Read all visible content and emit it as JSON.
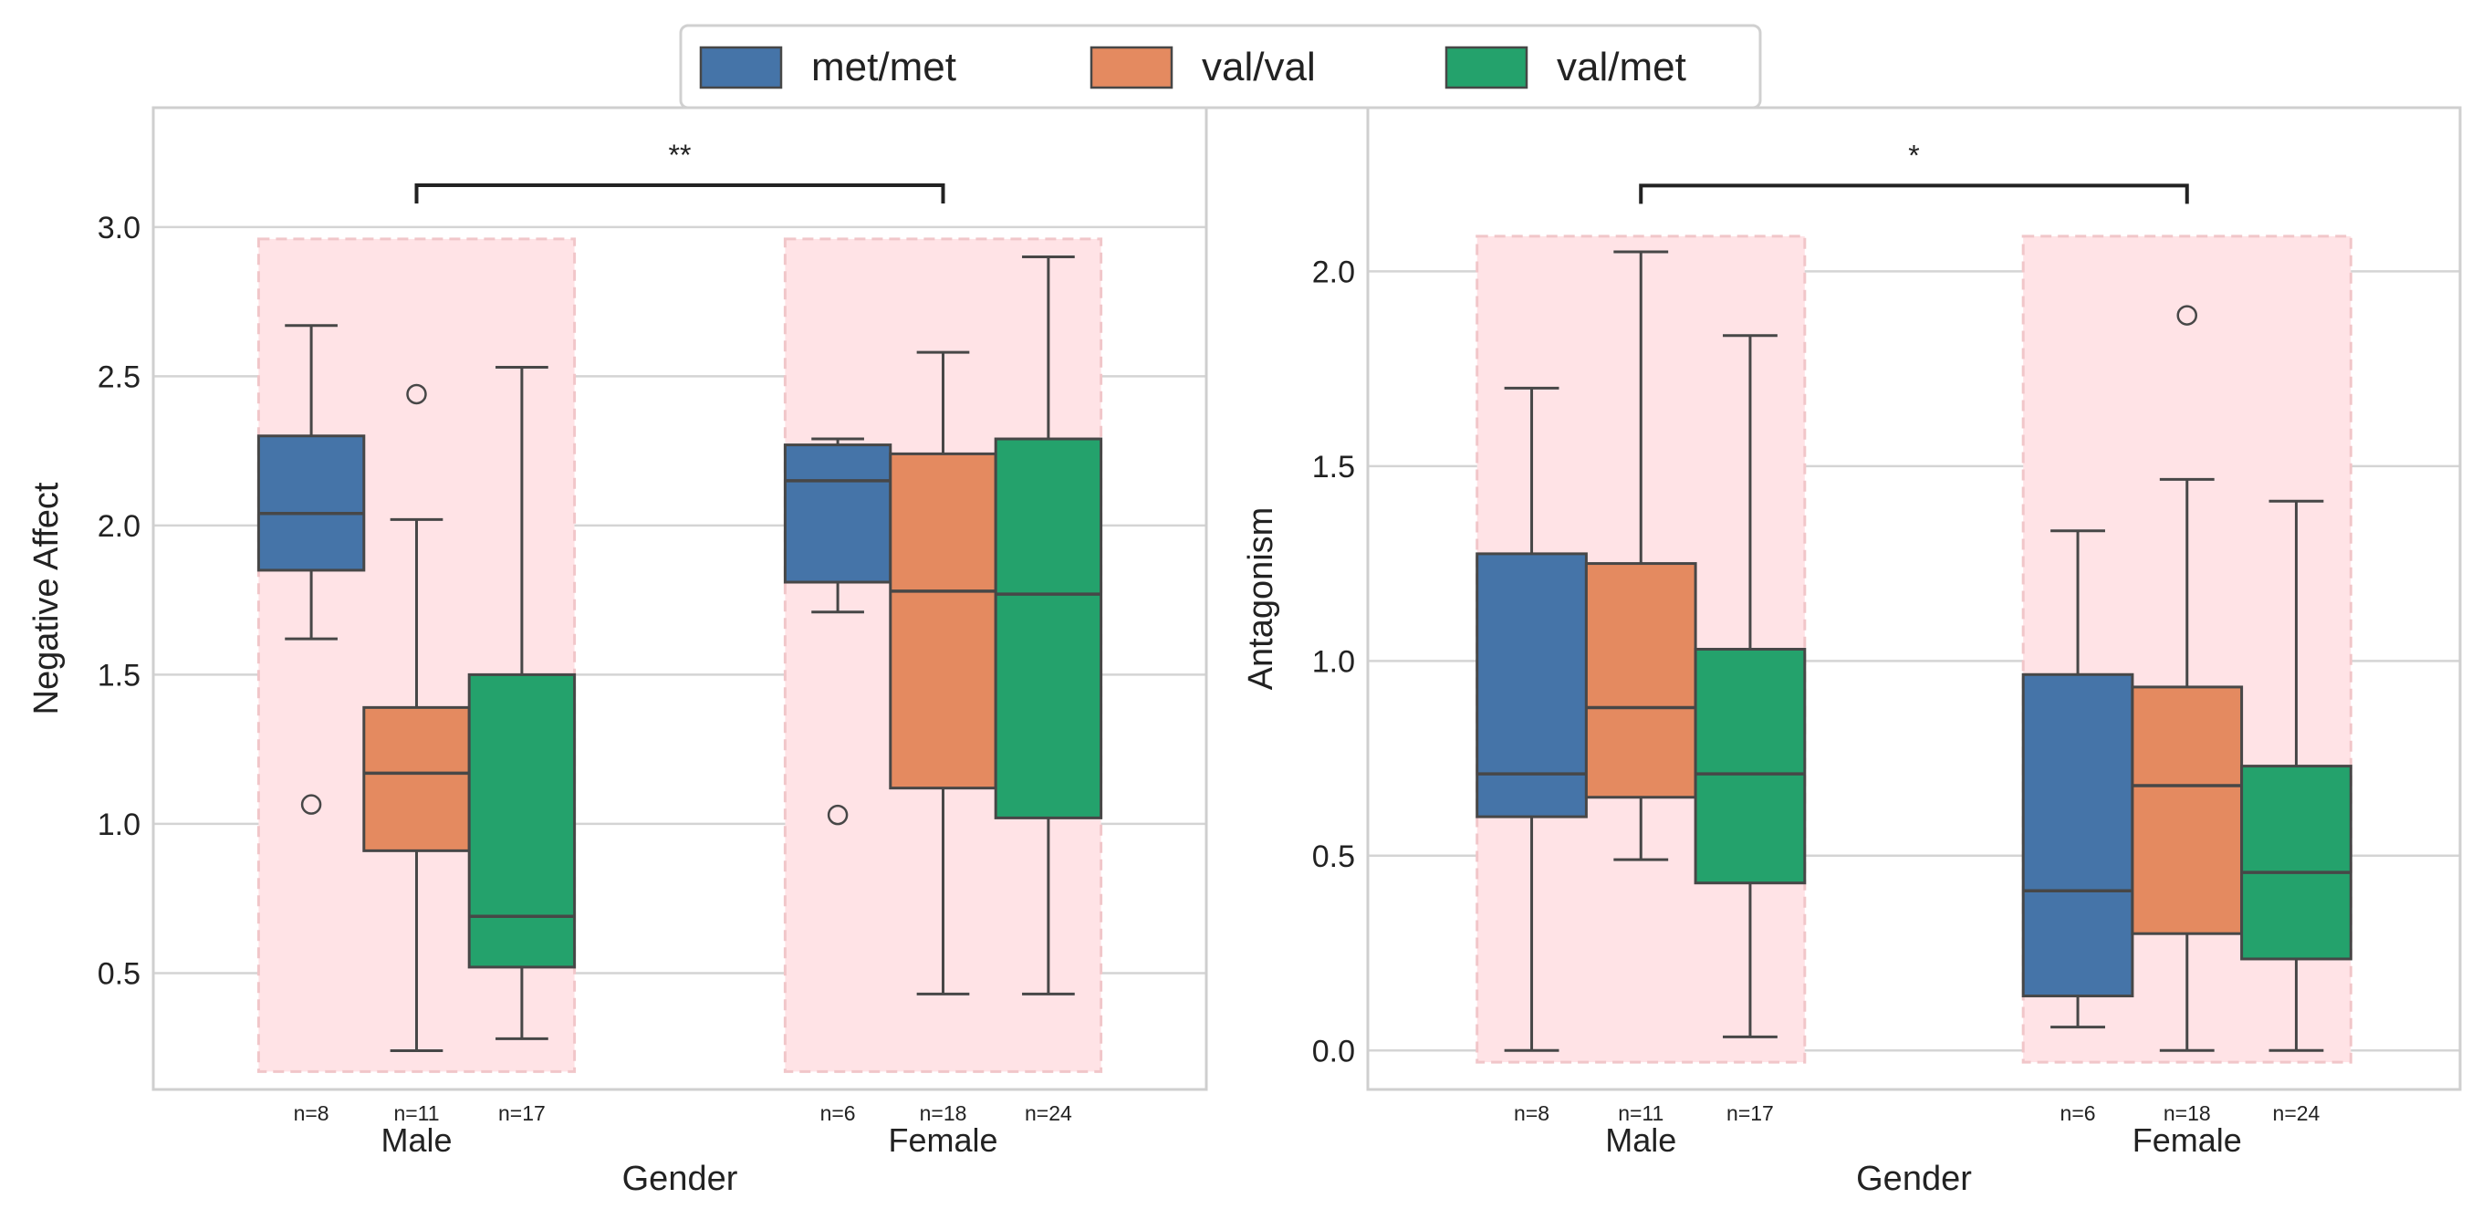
{
  "legend": {
    "items": [
      {
        "label": "met/met",
        "color": "#4574a8"
      },
      {
        "label": "val/val",
        "color": "#e48a60"
      },
      {
        "label": "val/met",
        "color": "#24a26c"
      }
    ],
    "placement": "top-center"
  },
  "chart_data": [
    {
      "type": "box",
      "xlabel": "Gender",
      "ylabel": "Negative Affect",
      "ylim": [
        0.11,
        3.4
      ],
      "yticks": [
        "0.5",
        "1.0",
        "1.5",
        "2.0",
        "2.5",
        "3.0"
      ],
      "ytick_values": [
        0.5,
        1.0,
        1.5,
        2.0,
        2.5,
        3.0
      ],
      "grid": true,
      "categories": [
        "Male",
        "Female"
      ],
      "highlight_range": [
        0.17,
        2.96
      ],
      "significance": {
        "label": "**",
        "y": 3.14,
        "from": "Male",
        "to": "Female"
      },
      "groups": [
        {
          "category": "Male",
          "boxes": [
            {
              "hue": "met/met",
              "n": "n=8",
              "low": 1.62,
              "q1": 1.85,
              "median": 2.04,
              "q3": 2.3,
              "high": 2.67,
              "outliers": [
                1.065
              ]
            },
            {
              "hue": "val/val",
              "n": "n=11",
              "low": 0.24,
              "q1": 0.91,
              "median": 1.17,
              "q3": 1.39,
              "high": 2.02,
              "outliers": [
                2.44
              ]
            },
            {
              "hue": "val/met",
              "n": "n=17",
              "low": 0.28,
              "q1": 0.52,
              "median": 0.69,
              "q3": 1.5,
              "high": 2.53,
              "outliers": []
            }
          ]
        },
        {
          "category": "Female",
          "boxes": [
            {
              "hue": "met/met",
              "n": "n=6",
              "low": 1.71,
              "q1": 1.81,
              "median": 2.15,
              "q3": 2.27,
              "high": 2.29,
              "outliers": [
                1.03
              ]
            },
            {
              "hue": "val/val",
              "n": "n=18",
              "low": 0.43,
              "q1": 1.12,
              "median": 1.78,
              "q3": 2.24,
              "high": 2.58,
              "outliers": []
            },
            {
              "hue": "val/met",
              "n": "n=24",
              "low": 0.43,
              "q1": 1.02,
              "median": 1.77,
              "q3": 2.29,
              "high": 2.9,
              "outliers": []
            }
          ]
        }
      ]
    },
    {
      "type": "box",
      "xlabel": "Gender",
      "ylabel": "Antagonism",
      "ylim": [
        -0.1,
        2.42
      ],
      "yticks": [
        "0.0",
        "0.5",
        "1.0",
        "1.5",
        "2.0"
      ],
      "ytick_values": [
        0.0,
        0.5,
        1.0,
        1.5,
        2.0
      ],
      "grid": true,
      "categories": [
        "Male",
        "Female"
      ],
      "highlight_range": [
        -0.03,
        2.09
      ],
      "significance": {
        "label": "*",
        "y": 2.22,
        "from": "Male",
        "to": "Female"
      },
      "groups": [
        {
          "category": "Male",
          "boxes": [
            {
              "hue": "met/met",
              "n": "n=8",
              "low": 0.0,
              "q1": 0.6,
              "median": 0.71,
              "q3": 1.275,
              "high": 1.7,
              "outliers": []
            },
            {
              "hue": "val/val",
              "n": "n=11",
              "low": 0.49,
              "q1": 0.65,
              "median": 0.88,
              "q3": 1.25,
              "high": 2.05,
              "outliers": []
            },
            {
              "hue": "val/met",
              "n": "n=17",
              "low": 0.035,
              "q1": 0.43,
              "median": 0.71,
              "q3": 1.03,
              "high": 1.835,
              "outliers": []
            }
          ]
        },
        {
          "category": "Female",
          "boxes": [
            {
              "hue": "met/met",
              "n": "n=6",
              "low": 0.06,
              "q1": 0.14,
              "median": 0.41,
              "q3": 0.965,
              "high": 1.334,
              "outliers": []
            },
            {
              "hue": "val/val",
              "n": "n=18",
              "low": 0.0,
              "q1": 0.3,
              "median": 0.68,
              "q3": 0.933,
              "high": 1.466,
              "outliers": [
                1.887
              ]
            },
            {
              "hue": "val/met",
              "n": "n=24",
              "low": 0.0,
              "q1": 0.235,
              "median": 0.457,
              "q3": 0.73,
              "high": 1.41,
              "outliers": []
            }
          ]
        }
      ]
    }
  ]
}
